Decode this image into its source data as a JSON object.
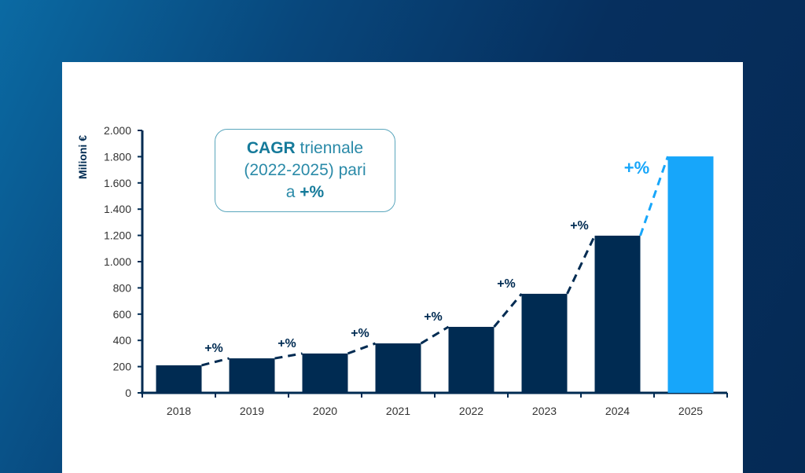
{
  "chart_data": {
    "type": "bar",
    "title": "",
    "xlabel": "",
    "ylabel": "Milioni €",
    "ylim": [
      0,
      2000
    ],
    "yticks": [
      0,
      200,
      400,
      600,
      800,
      1000,
      1200,
      1400,
      1600,
      1800,
      2000
    ],
    "ytick_labels": [
      "0",
      "200",
      "400",
      "600",
      "800",
      "1.000",
      "1.200",
      "1.400",
      "1.600",
      "1.800",
      "2.000"
    ],
    "categories": [
      "2018",
      "2019",
      "2020",
      "2021",
      "2022",
      "2023",
      "2024",
      "2025"
    ],
    "values": [
      210,
      263,
      300,
      377,
      503,
      755,
      1198,
      1802
    ],
    "growth_labels": [
      "+%",
      "+%",
      "+%",
      "+%",
      "+%",
      "+%",
      "+%"
    ],
    "grid": false,
    "colors": {
      "bar": "#002b52",
      "highlight": "#17a6fa",
      "axis": "#002b52"
    },
    "annotation": {
      "bold": "CAGR",
      "line1": " triennale",
      "line2": "(2022-2025) pari",
      "line3_prefix": "a ",
      "line3_bold": "+%"
    }
  }
}
